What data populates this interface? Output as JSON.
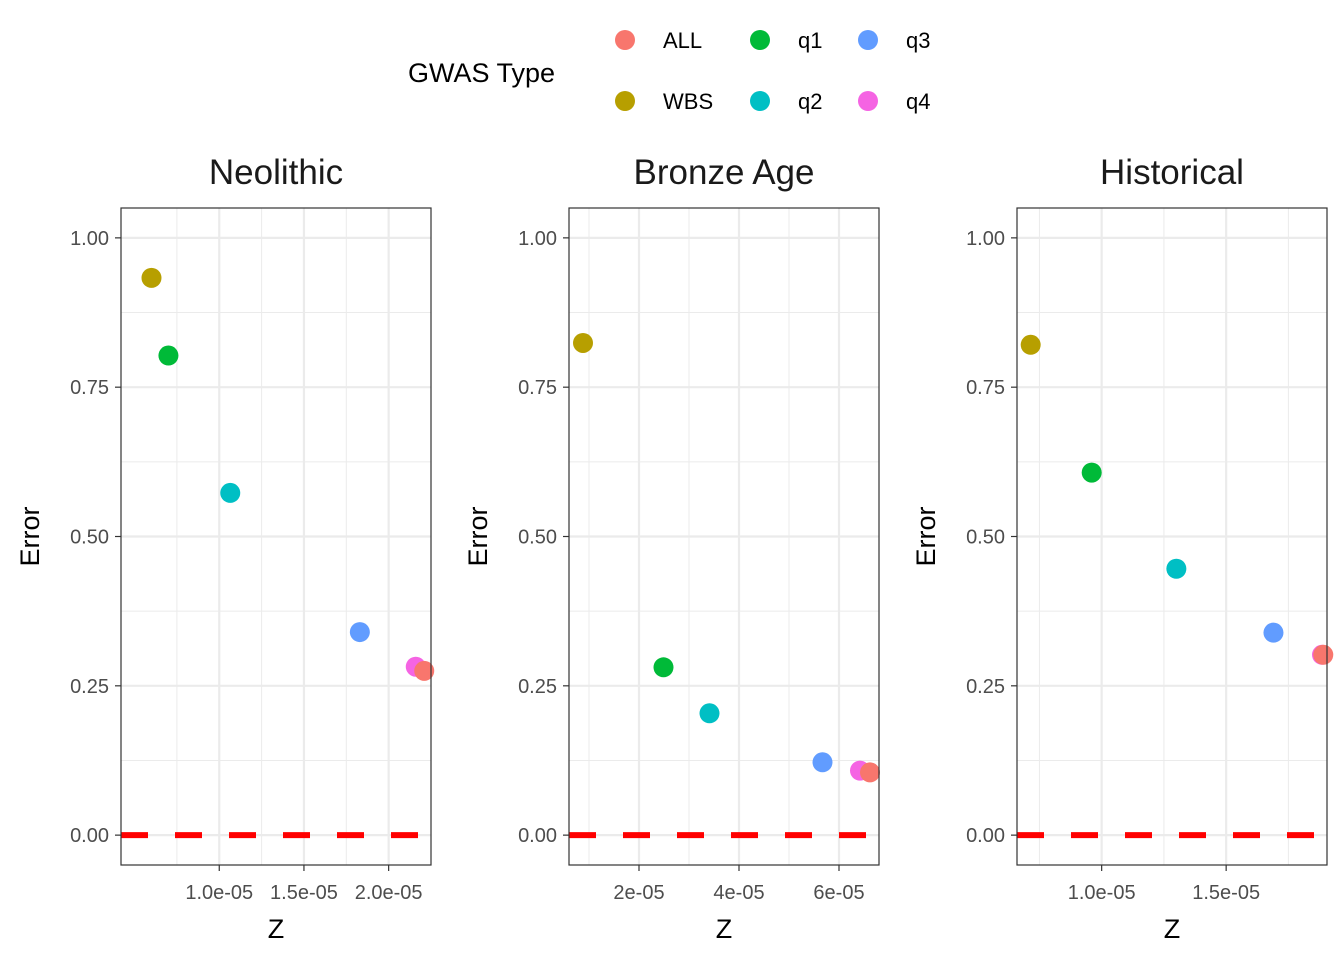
{
  "chart_data": {
    "type": "scatter",
    "legend": {
      "title": "GWAS Type",
      "position": "top",
      "entries": [
        {
          "name": "ALL",
          "color": "#F8766D"
        },
        {
          "name": "WBS",
          "color": "#B79F00"
        },
        {
          "name": "q1",
          "color": "#00BA38"
        },
        {
          "name": "q2",
          "color": "#00BFC4"
        },
        {
          "name": "q3",
          "color": "#619CFF"
        },
        {
          "name": "q4",
          "color": "#F564E3"
        }
      ]
    },
    "reference_line": {
      "y": 0,
      "color": "#FF0000",
      "style": "dashed"
    },
    "panels": [
      {
        "title": "Neolithic",
        "xlabel": "Z",
        "ylabel": "Error",
        "xlim": [
          4.2e-06,
          2.25e-05
        ],
        "ylim": [
          -0.05,
          1.05
        ],
        "x_ticks": [
          {
            "value": 1e-05,
            "label": "1.0e-05"
          },
          {
            "value": 1.5e-05,
            "label": "1.5e-05"
          },
          {
            "value": 2e-05,
            "label": "2.0e-05"
          }
        ],
        "y_ticks": [
          {
            "value": 0.0,
            "label": "0.00"
          },
          {
            "value": 0.25,
            "label": "0.25"
          },
          {
            "value": 0.5,
            "label": "0.50"
          },
          {
            "value": 0.75,
            "label": "0.75"
          },
          {
            "value": 1.0,
            "label": "1.00"
          }
        ],
        "points": [
          {
            "series": "WBS",
            "x": 6e-06,
            "y": 0.933
          },
          {
            "series": "q1",
            "x": 7e-06,
            "y": 0.803
          },
          {
            "series": "q2",
            "x": 1.065e-05,
            "y": 0.573
          },
          {
            "series": "q3",
            "x": 1.83e-05,
            "y": 0.34
          },
          {
            "series": "q4",
            "x": 2.16e-05,
            "y": 0.282
          },
          {
            "series": "ALL",
            "x": 2.21e-05,
            "y": 0.275
          }
        ]
      },
      {
        "title": "Bronze Age",
        "xlabel": "Z",
        "ylabel": "Error",
        "xlim": [
          6e-06,
          6.8e-05
        ],
        "ylim": [
          -0.05,
          1.05
        ],
        "x_ticks": [
          {
            "value": 2e-05,
            "label": "2e-05"
          },
          {
            "value": 4e-05,
            "label": "4e-05"
          },
          {
            "value": 6e-05,
            "label": "6e-05"
          }
        ],
        "y_ticks": [
          {
            "value": 0.0,
            "label": "0.00"
          },
          {
            "value": 0.25,
            "label": "0.25"
          },
          {
            "value": 0.5,
            "label": "0.50"
          },
          {
            "value": 0.75,
            "label": "0.75"
          },
          {
            "value": 1.0,
            "label": "1.00"
          }
        ],
        "points": [
          {
            "series": "WBS",
            "x": 8.8e-06,
            "y": 0.824
          },
          {
            "series": "q1",
            "x": 2.49e-05,
            "y": 0.281
          },
          {
            "series": "q2",
            "x": 3.41e-05,
            "y": 0.204
          },
          {
            "series": "q3",
            "x": 5.67e-05,
            "y": 0.122
          },
          {
            "series": "q4",
            "x": 6.42e-05,
            "y": 0.108
          },
          {
            "series": "ALL",
            "x": 6.62e-05,
            "y": 0.105
          }
        ]
      },
      {
        "title": "Historical",
        "xlabel": "Z",
        "ylabel": "Error",
        "xlim": [
          6.6e-06,
          1.905e-05
        ],
        "ylim": [
          -0.05,
          1.05
        ],
        "x_ticks": [
          {
            "value": 1e-05,
            "label": "1.0e-05"
          },
          {
            "value": 1.5e-05,
            "label": "1.5e-05"
          }
        ],
        "y_ticks": [
          {
            "value": 0.0,
            "label": "0.00"
          },
          {
            "value": 0.25,
            "label": "0.25"
          },
          {
            "value": 0.5,
            "label": "0.50"
          },
          {
            "value": 0.75,
            "label": "0.75"
          },
          {
            "value": 1.0,
            "label": "1.00"
          }
        ],
        "points": [
          {
            "series": "WBS",
            "x": 7.15e-06,
            "y": 0.821
          },
          {
            "series": "q1",
            "x": 9.6e-06,
            "y": 0.607
          },
          {
            "series": "q2",
            "x": 1.3e-05,
            "y": 0.446
          },
          {
            "series": "q3",
            "x": 1.69e-05,
            "y": 0.339
          },
          {
            "series": "q4",
            "x": 1.885e-05,
            "y": 0.302
          },
          {
            "series": "ALL",
            "x": 1.89e-05,
            "y": 0.302
          }
        ]
      }
    ]
  }
}
